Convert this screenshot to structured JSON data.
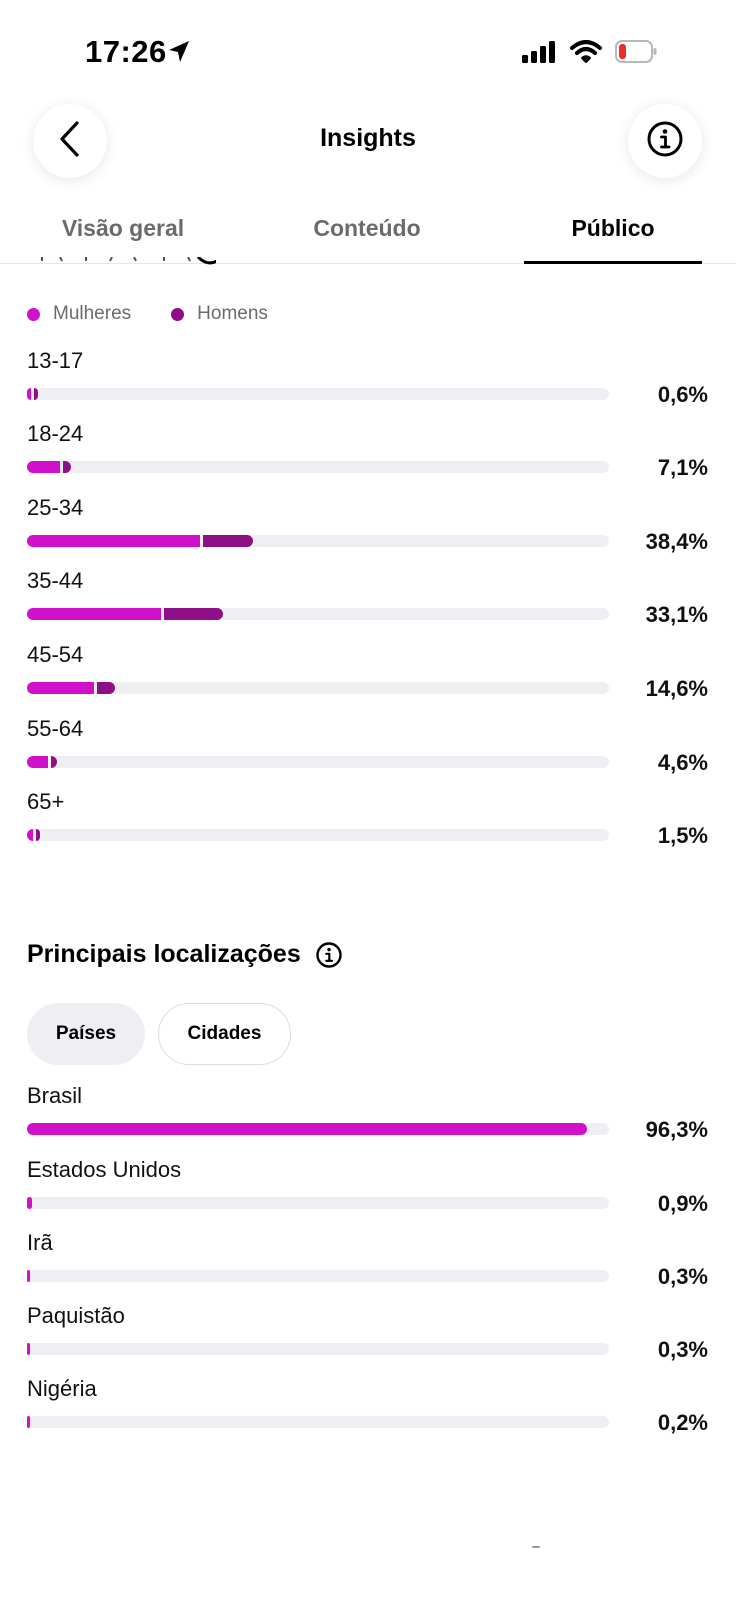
{
  "status_bar": {
    "time": "17:26",
    "icons": [
      "location-arrow-icon",
      "cellular-signal-icon",
      "wifi-icon",
      "battery-low-icon"
    ]
  },
  "header": {
    "title": "Insights",
    "back_icon": "chevron-left-icon",
    "info_icon": "info-icon"
  },
  "tabs": [
    {
      "label": "Visão geral",
      "active": false
    },
    {
      "label": "Conteúdo",
      "active": false
    },
    {
      "label": "Público",
      "active": true
    }
  ],
  "colors": {
    "women": "#d011c9",
    "men": "#8f0f86",
    "track": "#efeff3",
    "location_bar": "#d011c9"
  },
  "legend": {
    "women": "Mulheres",
    "men": "Homens"
  },
  "age_groups": [
    {
      "label": "13-17",
      "percent": "0,6%",
      "women_fraction": 0.005,
      "men_fraction": 0.002
    },
    {
      "label": "18-24",
      "percent": "7,1%",
      "women_fraction": 0.056,
      "men_fraction": 0.015
    },
    {
      "label": "25-34",
      "percent": "38,4%",
      "women_fraction": 0.297,
      "men_fraction": 0.087
    },
    {
      "label": "35-44",
      "percent": "33,1%",
      "women_fraction": 0.231,
      "men_fraction": 0.1
    },
    {
      "label": "45-54",
      "percent": "14,6%",
      "women_fraction": 0.115,
      "men_fraction": 0.031
    },
    {
      "label": "55-64",
      "percent": "4,6%",
      "women_fraction": 0.036,
      "men_fraction": 0.01
    },
    {
      "label": "65+",
      "percent": "1,5%",
      "women_fraction": 0.01,
      "men_fraction": 0.005
    }
  ],
  "locations": {
    "title": "Principais localizações",
    "info_icon": "info-icon",
    "chips": [
      {
        "label": "Países",
        "selected": true
      },
      {
        "label": "Cidades",
        "selected": false
      }
    ],
    "items": [
      {
        "label": "Brasil",
        "percent": "96,3%",
        "fraction": 0.963
      },
      {
        "label": "Estados Unidos",
        "percent": "0,9%",
        "fraction": 0.009
      },
      {
        "label": "Irã",
        "percent": "0,3%",
        "fraction": 0.003
      },
      {
        "label": "Paquistão",
        "percent": "0,3%",
        "fraction": 0.003
      },
      {
        "label": "Nigéria",
        "percent": "0,2%",
        "fraction": 0.002
      }
    ]
  }
}
